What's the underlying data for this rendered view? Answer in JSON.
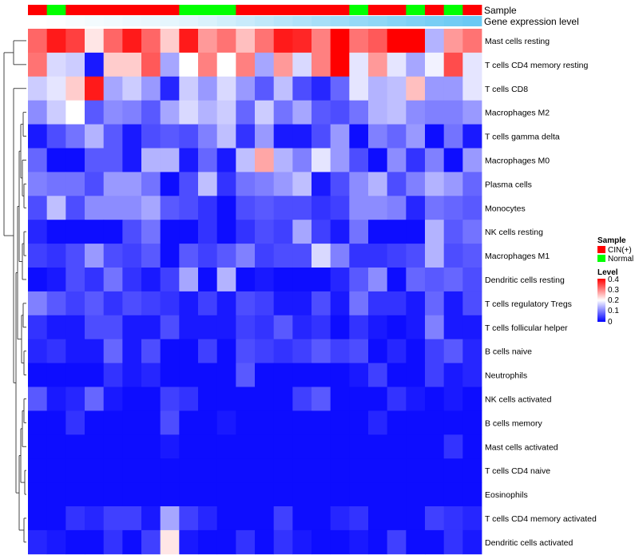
{
  "chart_data": {
    "type": "heatmap",
    "annotation_rows": [
      {
        "name": "Sample",
        "values": [
          "CIN(+)",
          "Normal",
          "CIN(+)",
          "CIN(+)",
          "CIN(+)",
          "CIN(+)",
          "CIN(+)",
          "CIN(+)",
          "Normal",
          "Normal",
          "Normal",
          "CIN(+)",
          "CIN(+)",
          "CIN(+)",
          "CIN(+)",
          "CIN(+)",
          "CIN(+)",
          "Normal",
          "CIN(+)",
          "CIN(+)",
          "Normal",
          "CIN(+)",
          "Normal",
          "CIN(+)"
        ],
        "colors": {
          "CIN(+)": "#FF0000",
          "Normal": "#00FF00"
        }
      },
      {
        "name": "Gene expression level",
        "values": [
          0,
          0.02,
          0.05,
          0.07,
          0.09,
          0.11,
          0.13,
          0.15,
          0.18,
          0.22,
          0.27,
          0.32,
          0.37,
          0.42,
          0.47,
          0.52,
          0.57,
          0.62,
          0.66,
          0.71,
          0.76,
          0.8,
          0.84,
          0.88
        ],
        "color_low": "#FFFFFF",
        "color_high": "#56C2F2"
      }
    ],
    "rows": [
      "Mast cells resting",
      "T cells CD4 memory resting",
      "T cells CD8",
      "Macrophages M2",
      "T cells gamma delta",
      "Macrophages M0",
      "Plasma cells",
      "Monocytes",
      "NK cells resting",
      "Macrophages M1",
      "Dendritic cells resting",
      "T cells regulatory  Tregs",
      "T cells follicular helper",
      "B cells naive",
      "Neutrophils",
      "NK cells activated",
      "B cells memory",
      "Mast cells activated",
      "T cells CD4 naive",
      "Eosinophils",
      "T cells CD4 memory activated",
      "Dendritic cells activated"
    ],
    "values": [
      [
        0.32,
        0.38,
        0.35,
        0.22,
        0.32,
        0.38,
        0.32,
        0.24,
        0.38,
        0.28,
        0.31,
        0.25,
        0.31,
        0.38,
        0.37,
        0.3,
        0.4,
        0.31,
        0.33,
        0.4,
        0.4,
        0.14,
        0.28,
        0.31
      ],
      [
        0.31,
        0.17,
        0.16,
        0.02,
        0.24,
        0.24,
        0.33,
        0.13,
        0.2,
        0.3,
        0.2,
        0.3,
        0.13,
        0.28,
        0.17,
        0.3,
        0.4,
        0.18,
        0.28,
        0.18,
        0.13,
        0.19,
        0.34,
        0.18
      ],
      [
        0.16,
        0.18,
        0.24,
        0.38,
        0.13,
        0.16,
        0.12,
        0.03,
        0.16,
        0.12,
        0.17,
        0.12,
        0.07,
        0.15,
        0.06,
        0.03,
        0.08,
        0.18,
        0.14,
        0.15,
        0.25,
        0.12,
        0.12,
        0.18
      ],
      [
        0.11,
        0.16,
        0.2,
        0.07,
        0.11,
        0.1,
        0.07,
        0.13,
        0.17,
        0.14,
        0.16,
        0.08,
        0.16,
        0.09,
        0.13,
        0.07,
        0.06,
        0.09,
        0.14,
        0.15,
        0.11,
        0.1,
        0.1,
        0.12
      ],
      [
        0.02,
        0.06,
        0.09,
        0.14,
        0.07,
        0.02,
        0.06,
        0.07,
        0.06,
        0.1,
        0.15,
        0.04,
        0.12,
        0.02,
        0.02,
        0.06,
        0.12,
        0.01,
        0.1,
        0.08,
        0.12,
        0.01,
        0.09,
        0.02
      ],
      [
        0.08,
        0.01,
        0.01,
        0.07,
        0.07,
        0.02,
        0.14,
        0.14,
        0.02,
        0.08,
        0.02,
        0.15,
        0.27,
        0.14,
        0.1,
        0.18,
        0.12,
        0.06,
        0.01,
        0.11,
        0.04,
        0.1,
        0.01,
        0.12
      ],
      [
        0.1,
        0.09,
        0.09,
        0.06,
        0.12,
        0.12,
        0.09,
        0.01,
        0.06,
        0.15,
        0.04,
        0.09,
        0.1,
        0.12,
        0.15,
        0.02,
        0.06,
        0.11,
        0.14,
        0.06,
        0.1,
        0.14,
        0.12,
        0.08
      ],
      [
        0.06,
        0.15,
        0.06,
        0.11,
        0.11,
        0.11,
        0.13,
        0.07,
        0.06,
        0.04,
        0.01,
        0.06,
        0.07,
        0.06,
        0.06,
        0.04,
        0.05,
        0.11,
        0.11,
        0.1,
        0.03,
        0.09,
        0.08,
        0.07
      ],
      [
        0.03,
        0.01,
        0.01,
        0.01,
        0.01,
        0.06,
        0.09,
        0.01,
        0.01,
        0.04,
        0.01,
        0.04,
        0.06,
        0.05,
        0.13,
        0.05,
        0.02,
        0.09,
        0.01,
        0.01,
        0.01,
        0.14,
        0.07,
        0.09
      ],
      [
        0.05,
        0.04,
        0.06,
        0.12,
        0.06,
        0.05,
        0.07,
        0.01,
        0.07,
        0.05,
        0.07,
        0.1,
        0.05,
        0.06,
        0.06,
        0.17,
        0.1,
        0.04,
        0.04,
        0.05,
        0.06,
        0.14,
        0.06,
        0.07
      ],
      [
        0.01,
        0.02,
        0.06,
        0.04,
        0.09,
        0.04,
        0.02,
        0.05,
        0.13,
        0.01,
        0.14,
        0.01,
        0.02,
        0.01,
        0.01,
        0.01,
        0.03,
        0.07,
        0.11,
        0.01,
        0.08,
        0.07,
        0.08,
        0.06
      ],
      [
        0.1,
        0.07,
        0.05,
        0.07,
        0.04,
        0.06,
        0.05,
        0.04,
        0.02,
        0.05,
        0.02,
        0.06,
        0.05,
        0.02,
        0.02,
        0.06,
        0.02,
        0.09,
        0.04,
        0.04,
        0.02,
        0.08,
        0.02,
        0.06
      ],
      [
        0.04,
        0.02,
        0.02,
        0.06,
        0.06,
        0.02,
        0.02,
        0.06,
        0.02,
        0.02,
        0.02,
        0.05,
        0.04,
        0.07,
        0.03,
        0.04,
        0.01,
        0.04,
        0.02,
        0.01,
        0.02,
        0.1,
        0.02,
        0.02
      ],
      [
        0.03,
        0.04,
        0.02,
        0.02,
        0.08,
        0.02,
        0.06,
        0.01,
        0.01,
        0.05,
        0.01,
        0.06,
        0.05,
        0.04,
        0.05,
        0.07,
        0.05,
        0.06,
        0.01,
        0.03,
        0.01,
        0.05,
        0.07,
        0.03
      ],
      [
        0.01,
        0.01,
        0.01,
        0.01,
        0.04,
        0.02,
        0.03,
        0.01,
        0.01,
        0.01,
        0.01,
        0.07,
        0.01,
        0.01,
        0.01,
        0.01,
        0.01,
        0.02,
        0.05,
        0.01,
        0.01,
        0.05,
        0.02,
        0.03
      ],
      [
        0.07,
        0.02,
        0.03,
        0.08,
        0.02,
        0.01,
        0.01,
        0.05,
        0.04,
        0.01,
        0.01,
        0.01,
        0.01,
        0.01,
        0.05,
        0.07,
        0.01,
        0.01,
        0.01,
        0.04,
        0.02,
        0.01,
        0.02,
        0.01
      ],
      [
        0.01,
        0.01,
        0.04,
        0.01,
        0.01,
        0.01,
        0.01,
        0.06,
        0.01,
        0.01,
        0.02,
        0.01,
        0.01,
        0.01,
        0.01,
        0.01,
        0.01,
        0.01,
        0.03,
        0.01,
        0.01,
        0.01,
        0.01,
        0.01
      ],
      [
        0.01,
        0.01,
        0.01,
        0.01,
        0.01,
        0.01,
        0.01,
        0.02,
        0.01,
        0.01,
        0.01,
        0.01,
        0.01,
        0.01,
        0.01,
        0.01,
        0.01,
        0.01,
        0.01,
        0.01,
        0.01,
        0.01,
        0.04,
        0.01
      ],
      [
        0.01,
        0.01,
        0.01,
        0.01,
        0.01,
        0.01,
        0.01,
        0.01,
        0.01,
        0.01,
        0.01,
        0.01,
        0.01,
        0.01,
        0.01,
        0.01,
        0.01,
        0.01,
        0.01,
        0.01,
        0.01,
        0.01,
        0.01,
        0.01
      ],
      [
        0.01,
        0.01,
        0.01,
        0.01,
        0.01,
        0.01,
        0.01,
        0.01,
        0.01,
        0.01,
        0.01,
        0.01,
        0.01,
        0.01,
        0.01,
        0.01,
        0.01,
        0.01,
        0.01,
        0.01,
        0.01,
        0.01,
        0.01,
        0.01
      ],
      [
        0.01,
        0.01,
        0.04,
        0.03,
        0.05,
        0.05,
        0.02,
        0.13,
        0.05,
        0.03,
        0.01,
        0.01,
        0.01,
        0.05,
        0.01,
        0.01,
        0.03,
        0.04,
        0.01,
        0.01,
        0.01,
        0.05,
        0.04,
        0.03
      ],
      [
        0.03,
        0.02,
        0.01,
        0.01,
        0.04,
        0.01,
        0.05,
        0.22,
        0.02,
        0.01,
        0.01,
        0.04,
        0.01,
        0.04,
        0.02,
        0.01,
        0.01,
        0.02,
        0.01,
        0.05,
        0.01,
        0.01,
        0.04,
        0.02
      ]
    ],
    "color_scale": {
      "min": 0,
      "max": 0.4,
      "low": "#0000FF",
      "mid": "#FFFFFF",
      "high": "#FF0000"
    },
    "legends": {
      "sample": {
        "title": "Sample",
        "entries": [
          {
            "label": "CIN(+)",
            "color": "#FF0000"
          },
          {
            "label": "Normal",
            "color": "#00FF00"
          }
        ]
      },
      "level": {
        "title": "Level",
        "ticks": [
          "0.4",
          "0.3",
          "0.2",
          "0.1",
          "0"
        ]
      }
    },
    "row_dendrogram": true
  }
}
